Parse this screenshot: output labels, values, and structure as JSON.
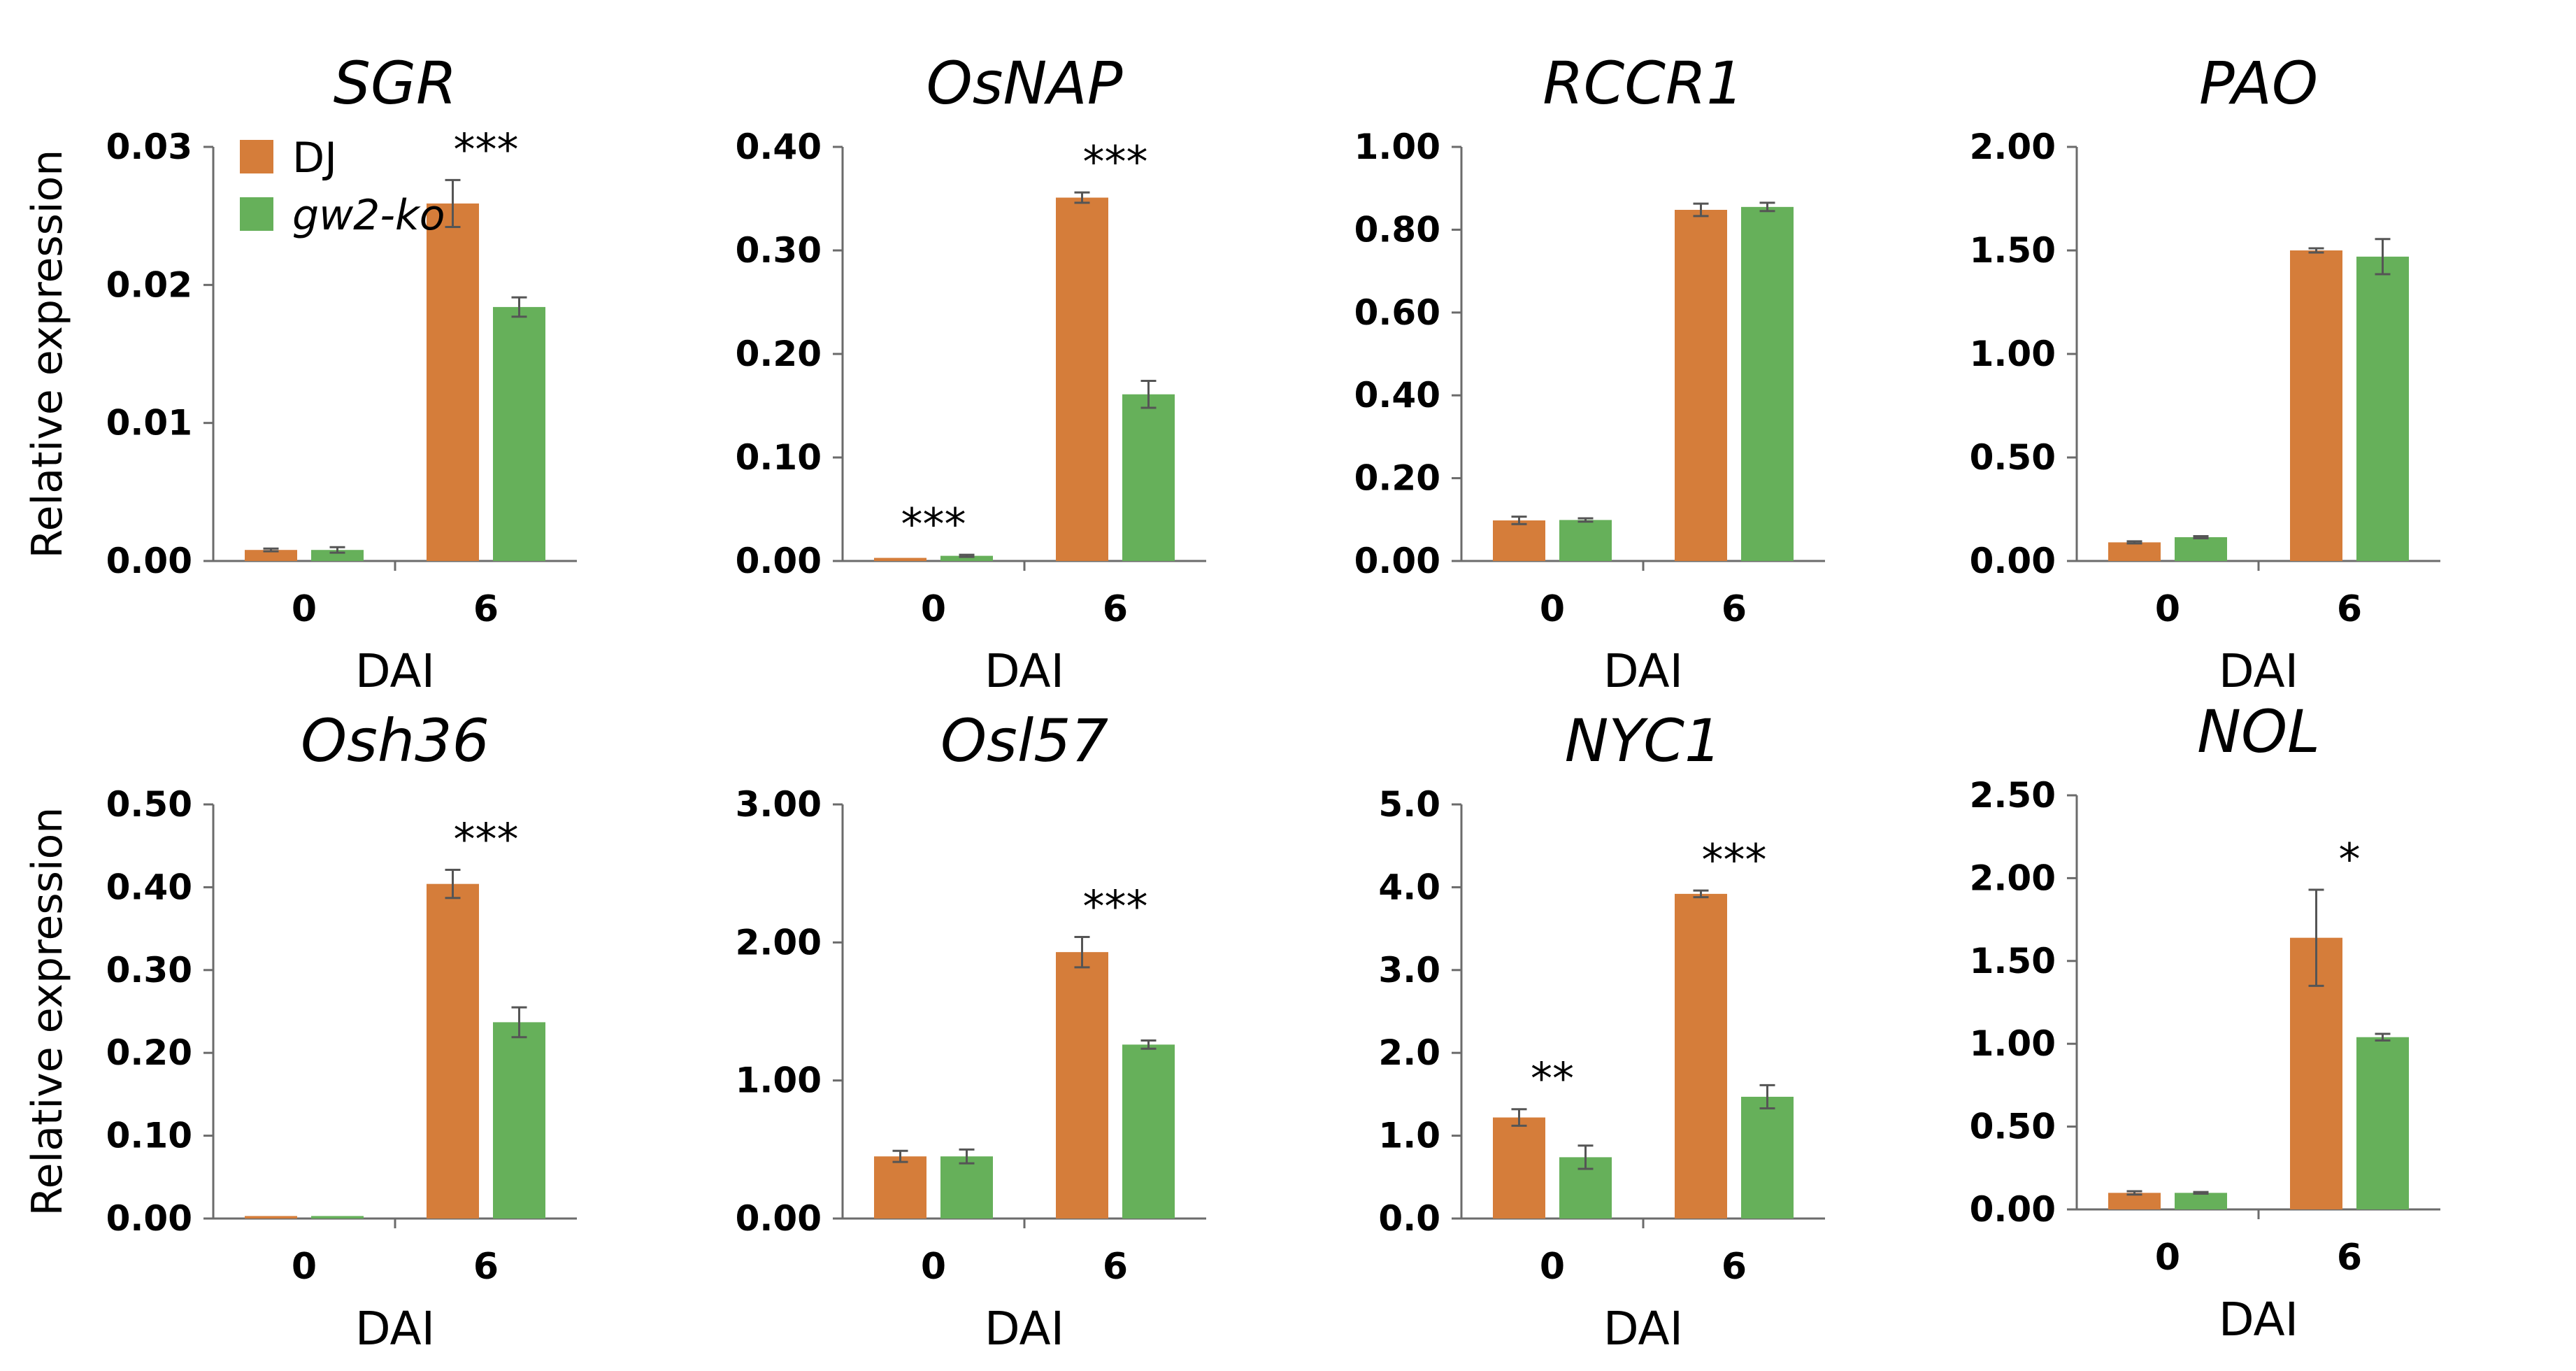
{
  "figure": {
    "legend": [
      {
        "label": "DJ",
        "color": "#D57D3A",
        "italic": false
      },
      {
        "label": "gw2-ko",
        "color": "#66B05A",
        "italic": true
      }
    ],
    "err_color": "#555555"
  },
  "chart_data": [
    {
      "type": "bar",
      "title": "SGR",
      "xlabel": "DAI",
      "ylabel": "Relative expression",
      "categories": [
        "0",
        "6"
      ],
      "yticks": [
        "0.00",
        "0.01",
        "0.02",
        "0.03"
      ],
      "ylim": [
        0,
        0.03
      ],
      "series": [
        {
          "name": "DJ",
          "values": [
            0.0008,
            0.0259
          ],
          "errors": [
            0.0001,
            0.0017
          ]
        },
        {
          "name": "gw2-ko",
          "values": [
            0.0008,
            0.0184
          ],
          "errors": [
            0.0002,
            0.0007
          ]
        }
      ],
      "significance": [
        "",
        "***"
      ]
    },
    {
      "type": "bar",
      "title": "OsNAP",
      "xlabel": "DAI",
      "ylabel": "",
      "categories": [
        "0",
        "6"
      ],
      "yticks": [
        "0.00",
        "0.10",
        "0.20",
        "0.30",
        "0.40"
      ],
      "ylim": [
        0,
        0.4
      ],
      "series": [
        {
          "name": "DJ",
          "values": [
            0.003,
            0.351
          ],
          "errors": [
            0.0005,
            0.005
          ]
        },
        {
          "name": "gw2-ko",
          "values": [
            0.005,
            0.161
          ],
          "errors": [
            0.001,
            0.013
          ]
        }
      ],
      "significance": [
        "***",
        "***"
      ]
    },
    {
      "type": "bar",
      "title": "RCCR1",
      "xlabel": "DAI",
      "ylabel": "",
      "categories": [
        "0",
        "6"
      ],
      "yticks": [
        "0.00",
        "0.20",
        "0.40",
        "0.60",
        "0.80",
        "1.00"
      ],
      "ylim": [
        0,
        1.0
      ],
      "series": [
        {
          "name": "DJ",
          "values": [
            0.098,
            0.848
          ],
          "errors": [
            0.009,
            0.015
          ]
        },
        {
          "name": "gw2-ko",
          "values": [
            0.099,
            0.855
          ],
          "errors": [
            0.004,
            0.01
          ]
        }
      ],
      "significance": [
        "",
        ""
      ]
    },
    {
      "type": "bar",
      "title": "PAO",
      "xlabel": "DAI",
      "ylabel": "",
      "categories": [
        "0",
        "6"
      ],
      "yticks": [
        "0.00",
        "0.50",
        "1.00",
        "1.50",
        "2.00"
      ],
      "ylim": [
        0,
        2.0
      ],
      "series": [
        {
          "name": "DJ",
          "values": [
            0.09,
            1.5
          ],
          "errors": [
            0.005,
            0.01
          ]
        },
        {
          "name": "gw2-ko",
          "values": [
            0.115,
            1.47
          ],
          "errors": [
            0.005,
            0.085
          ]
        }
      ],
      "significance": [
        "",
        ""
      ]
    },
    {
      "type": "bar",
      "title": "Osh36",
      "xlabel": "DAI",
      "ylabel": "Relative expression",
      "categories": [
        "0",
        "6"
      ],
      "yticks": [
        "0.00",
        "0.10",
        "0.20",
        "0.30",
        "0.40",
        "0.50"
      ],
      "ylim": [
        0,
        0.5
      ],
      "series": [
        {
          "name": "DJ",
          "values": [
            0.003,
            0.404
          ],
          "errors": [
            0.0005,
            0.017
          ]
        },
        {
          "name": "gw2-ko",
          "values": [
            0.003,
            0.237
          ],
          "errors": [
            0.0005,
            0.018
          ]
        }
      ],
      "significance": [
        "",
        "***"
      ]
    },
    {
      "type": "bar",
      "title": "Osl57",
      "xlabel": "DAI",
      "ylabel": "",
      "categories": [
        "0",
        "6"
      ],
      "yticks": [
        "0.00",
        "1.00",
        "2.00",
        "3.00"
      ],
      "ylim": [
        0,
        3.0
      ],
      "series": [
        {
          "name": "DJ",
          "values": [
            0.45,
            1.93
          ],
          "errors": [
            0.04,
            0.11
          ]
        },
        {
          "name": "gw2-ko",
          "values": [
            0.45,
            1.26
          ],
          "errors": [
            0.05,
            0.03
          ]
        }
      ],
      "significance": [
        "",
        "***"
      ]
    },
    {
      "type": "bar",
      "title": "NYC1",
      "xlabel": "DAI",
      "ylabel": "",
      "categories": [
        "0",
        "6"
      ],
      "yticks": [
        "0.0",
        "1.0",
        "2.0",
        "3.0",
        "4.0",
        "5.0"
      ],
      "ylim": [
        0,
        5.0
      ],
      "series": [
        {
          "name": "DJ",
          "values": [
            1.22,
            3.92
          ],
          "errors": [
            0.1,
            0.04
          ]
        },
        {
          "name": "gw2-ko",
          "values": [
            0.74,
            1.47
          ],
          "errors": [
            0.14,
            0.14
          ]
        }
      ],
      "significance": [
        "**",
        "***"
      ]
    },
    {
      "type": "bar",
      "title": "NOL",
      "xlabel": "DAI",
      "ylabel": "",
      "categories": [
        "0",
        "6"
      ],
      "yticks": [
        "0.00",
        "0.50",
        "1.00",
        "1.50",
        "2.00",
        "2.50"
      ],
      "ylim": [
        0,
        2.5
      ],
      "series": [
        {
          "name": "DJ",
          "values": [
            0.1,
            1.64
          ],
          "errors": [
            0.01,
            0.29
          ]
        },
        {
          "name": "gw2-ko",
          "values": [
            0.1,
            1.04
          ],
          "errors": [
            0.005,
            0.02
          ]
        }
      ],
      "significance": [
        "",
        "*"
      ]
    }
  ]
}
